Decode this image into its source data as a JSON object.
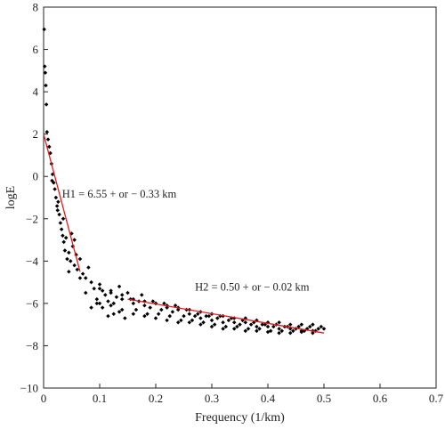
{
  "chart_data": {
    "type": "scatter",
    "xlabel": "Frequency (1/km)",
    "ylabel": "logE",
    "xlim": [
      0,
      0.7
    ],
    "ylim": [
      -10,
      8
    ],
    "xticks": [
      0,
      0.1,
      0.2,
      0.3,
      0.4,
      0.5,
      0.6,
      0.7
    ],
    "yticks": [
      -10,
      -8,
      -6,
      -4,
      -2,
      0,
      2,
      4,
      6,
      8
    ],
    "xtick_labels": [
      "0",
      "0.1",
      "0.2",
      "0.3",
      "0.4",
      "0.5",
      "0.6",
      "0.7"
    ],
    "ytick_labels": [
      "−10",
      "−8",
      "−6",
      "−4",
      "−2",
      "0",
      "2",
      "4",
      "6",
      "8"
    ],
    "grid": false,
    "colors": {
      "points": "#000000",
      "fit": "#e8191d"
    },
    "scatter": [
      [
        0.001,
        6.95
      ],
      [
        0.002,
        5.2
      ],
      [
        0.003,
        4.9
      ],
      [
        0.004,
        4.3
      ],
      [
        0.005,
        3.4
      ],
      [
        0.006,
        2.1
      ],
      [
        0.008,
        1.75
      ],
      [
        0.01,
        1.4
      ],
      [
        0.012,
        1.1
      ],
      [
        0.014,
        0.6
      ],
      [
        0.016,
        0.1
      ],
      [
        0.018,
        -0.3
      ],
      [
        0.02,
        -0.6
      ],
      [
        0.022,
        -1.0
      ],
      [
        0.024,
        -1.4
      ],
      [
        0.026,
        -1.2
      ],
      [
        0.028,
        -1.8
      ],
      [
        0.03,
        -2.2
      ],
      [
        0.032,
        -2.5
      ],
      [
        0.034,
        -2.8
      ],
      [
        0.036,
        -3.1
      ],
      [
        0.038,
        -3.5
      ],
      [
        0.04,
        -2.9
      ],
      [
        0.042,
        -3.9
      ],
      [
        0.045,
        -3.6
      ],
      [
        0.048,
        -4.0
      ],
      [
        0.05,
        -2.7
      ],
      [
        0.052,
        -3.3
      ],
      [
        0.055,
        -4.2
      ],
      [
        0.058,
        -3.7
      ],
      [
        0.06,
        -4.4
      ],
      [
        0.065,
        -3.9
      ],
      [
        0.07,
        -4.6
      ],
      [
        0.075,
        -4.8
      ],
      [
        0.08,
        -4.3
      ],
      [
        0.085,
        -5.0
      ],
      [
        0.09,
        -5.3
      ],
      [
        0.095,
        -5.8
      ],
      [
        0.1,
        -5.1
      ],
      [
        0.105,
        -6.2
      ],
      [
        0.11,
        -5.6
      ],
      [
        0.115,
        -6.6
      ],
      [
        0.12,
        -5.4
      ],
      [
        0.125,
        -6.0
      ],
      [
        0.13,
        -5.7
      ],
      [
        0.135,
        -6.4
      ],
      [
        0.14,
        -5.8
      ],
      [
        0.15,
        -5.5
      ],
      [
        0.16,
        -6.0
      ],
      [
        0.17,
        -5.9
      ],
      [
        0.18,
        -6.1
      ],
      [
        0.19,
        -6.2
      ],
      [
        0.2,
        -6.0
      ],
      [
        0.21,
        -6.3
      ],
      [
        0.22,
        -6.2
      ],
      [
        0.23,
        -6.4
      ],
      [
        0.24,
        -6.3
      ],
      [
        0.25,
        -6.6
      ],
      [
        0.26,
        -6.5
      ],
      [
        0.27,
        -6.6
      ],
      [
        0.28,
        -6.7
      ],
      [
        0.29,
        -6.6
      ],
      [
        0.3,
        -6.8
      ],
      [
        0.31,
        -6.7
      ],
      [
        0.32,
        -6.9
      ],
      [
        0.33,
        -6.8
      ],
      [
        0.34,
        -6.9
      ],
      [
        0.35,
        -7.0
      ],
      [
        0.36,
        -6.9
      ],
      [
        0.37,
        -7.0
      ],
      [
        0.38,
        -7.1
      ],
      [
        0.39,
        -7.0
      ],
      [
        0.4,
        -7.1
      ],
      [
        0.41,
        -7.1
      ],
      [
        0.42,
        -7.2
      ],
      [
        0.43,
        -7.1
      ],
      [
        0.44,
        -7.2
      ],
      [
        0.45,
        -7.2
      ],
      [
        0.46,
        -7.3
      ],
      [
        0.47,
        -7.2
      ],
      [
        0.48,
        -7.3
      ],
      [
        0.49,
        -7.2
      ],
      [
        0.5,
        -7.2
      ],
      [
        0.015,
        -0.2
      ],
      [
        0.025,
        -1.6
      ],
      [
        0.035,
        -2.0
      ],
      [
        0.045,
        -4.5
      ],
      [
        0.055,
        -3.0
      ],
      [
        0.065,
        -4.8
      ],
      [
        0.075,
        -5.5
      ],
      [
        0.085,
        -6.2
      ],
      [
        0.095,
        -6.0
      ],
      [
        0.105,
        -5.4
      ],
      [
        0.115,
        -5.9
      ],
      [
        0.125,
        -6.5
      ],
      [
        0.135,
        -5.2
      ],
      [
        0.145,
        -6.7
      ],
      [
        0.155,
        -5.8
      ],
      [
        0.165,
        -6.3
      ],
      [
        0.175,
        -5.6
      ],
      [
        0.185,
        -6.5
      ],
      [
        0.195,
        -5.9
      ],
      [
        0.205,
        -6.5
      ],
      [
        0.215,
        -6.0
      ],
      [
        0.225,
        -6.6
      ],
      [
        0.235,
        -6.1
      ],
      [
        0.245,
        -6.8
      ],
      [
        0.255,
        -6.3
      ],
      [
        0.265,
        -6.8
      ],
      [
        0.275,
        -6.5
      ],
      [
        0.285,
        -6.9
      ],
      [
        0.295,
        -6.6
      ],
      [
        0.305,
        -7.0
      ],
      [
        0.315,
        -6.6
      ],
      [
        0.325,
        -7.1
      ],
      [
        0.335,
        -6.7
      ],
      [
        0.345,
        -7.1
      ],
      [
        0.355,
        -6.8
      ],
      [
        0.365,
        -7.2
      ],
      [
        0.375,
        -6.9
      ],
      [
        0.385,
        -7.2
      ],
      [
        0.395,
        -7.0
      ],
      [
        0.405,
        -7.3
      ],
      [
        0.415,
        -7.0
      ],
      [
        0.425,
        -7.3
      ],
      [
        0.435,
        -7.1
      ],
      [
        0.445,
        -7.3
      ],
      [
        0.455,
        -7.1
      ],
      [
        0.465,
        -7.3
      ],
      [
        0.475,
        -7.1
      ],
      [
        0.485,
        -7.3
      ],
      [
        0.495,
        -7.1
      ],
      [
        0.1,
        -6.0
      ],
      [
        0.12,
        -6.1
      ],
      [
        0.14,
        -6.3
      ],
      [
        0.16,
        -6.5
      ],
      [
        0.18,
        -6.6
      ],
      [
        0.2,
        -6.7
      ],
      [
        0.22,
        -6.8
      ],
      [
        0.24,
        -6.9
      ],
      [
        0.26,
        -6.9
      ],
      [
        0.28,
        -7.0
      ],
      [
        0.3,
        -7.1
      ],
      [
        0.32,
        -7.2
      ],
      [
        0.34,
        -7.2
      ],
      [
        0.36,
        -7.3
      ],
      [
        0.38,
        -7.3
      ],
      [
        0.4,
        -7.35
      ],
      [
        0.42,
        -7.4
      ],
      [
        0.44,
        -7.4
      ],
      [
        0.46,
        -7.35
      ],
      [
        0.48,
        -7.4
      ],
      [
        0.1,
        -5.3
      ],
      [
        0.12,
        -5.5
      ],
      [
        0.14,
        -5.6
      ],
      [
        0.16,
        -5.8
      ],
      [
        0.18,
        -5.9
      ],
      [
        0.2,
        -6.0
      ],
      [
        0.22,
        -6.1
      ],
      [
        0.24,
        -6.2
      ],
      [
        0.26,
        -6.3
      ],
      [
        0.28,
        -6.4
      ],
      [
        0.3,
        -6.5
      ],
      [
        0.32,
        -6.6
      ],
      [
        0.34,
        -6.7
      ],
      [
        0.36,
        -6.7
      ],
      [
        0.38,
        -6.8
      ],
      [
        0.4,
        -6.9
      ],
      [
        0.42,
        -6.9
      ],
      [
        0.44,
        -7.0
      ],
      [
        0.46,
        -7.0
      ],
      [
        0.48,
        -7.0
      ]
    ],
    "fit_lines": [
      {
        "x": [
          0.0,
          0.065
        ],
        "y": [
          2.0,
          -4.5
        ]
      },
      {
        "x": [
          0.15,
          0.5
        ],
        "y": [
          -5.8,
          -7.4
        ]
      }
    ],
    "annotations": [
      {
        "text": "H1 = 6.55 + or − 0.33 km",
        "x": 0.033,
        "y": -1.0
      },
      {
        "text": "H2 = 0.50 + or − 0.02 km",
        "x": 0.27,
        "y": -5.4
      }
    ]
  }
}
